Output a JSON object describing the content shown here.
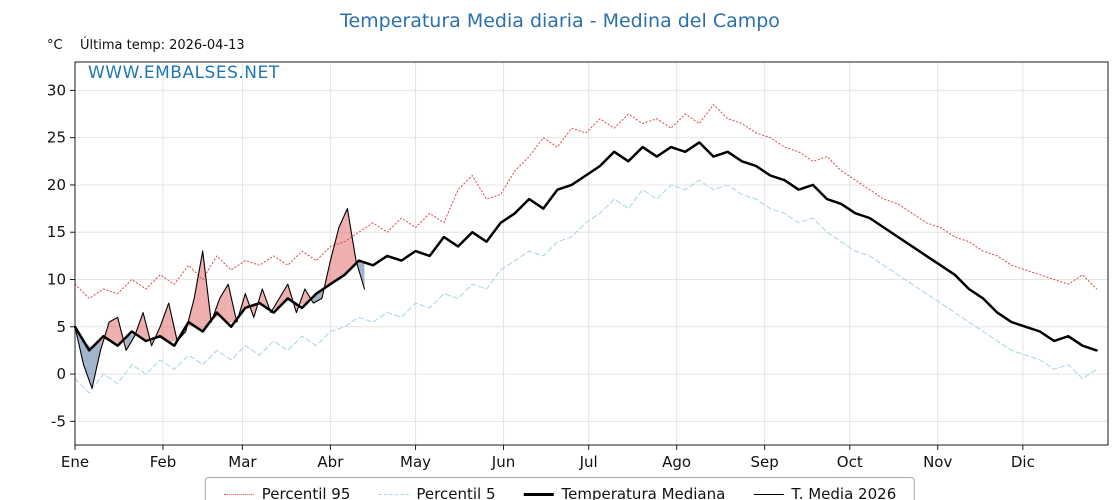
{
  "title": "Temperatura Media diaria - Medina del Campo",
  "unit_label": "°C",
  "last_temp_label": "Última temp: 2026-04-13",
  "watermark": "WWW.EMBALSES.NET",
  "colors": {
    "title": "#2c6fad",
    "watermark": "#1f77b4",
    "grid": "#e4e4e4",
    "axis": "#1a1a1a",
    "p95": "#dd4b4b",
    "p5": "#a6d4e6",
    "median": "#000000",
    "t2026": "#000000",
    "fill_above": "rgba(224,96,96,0.50)",
    "fill_below": "rgba(96,130,170,0.60)"
  },
  "chart_data": {
    "type": "line",
    "title": "Temperatura Media diaria - Medina del Campo",
    "xlabel": "",
    "ylabel": "°C",
    "x_unit": "day_of_year",
    "x_range": [
      0,
      364
    ],
    "ylim": [
      -7.5,
      33
    ],
    "yticks": [
      -5,
      0,
      5,
      10,
      15,
      20,
      25,
      30
    ],
    "grid": true,
    "legend_position": "bottom",
    "month_ticks": {
      "labels": [
        "Ene",
        "Feb",
        "Mar",
        "Abr",
        "May",
        "Jun",
        "Jul",
        "Ago",
        "Sep",
        "Oct",
        "Nov",
        "Dic"
      ],
      "day_positions": [
        0,
        31,
        59,
        90,
        120,
        151,
        181,
        212,
        243,
        273,
        304,
        334
      ]
    },
    "x_days": [
      0,
      5,
      10,
      15,
      20,
      25,
      30,
      35,
      40,
      45,
      50,
      55,
      60,
      65,
      70,
      75,
      80,
      85,
      90,
      95,
      100,
      105,
      110,
      115,
      120,
      125,
      130,
      135,
      140,
      145,
      150,
      155,
      160,
      165,
      170,
      175,
      180,
      185,
      190,
      195,
      200,
      205,
      210,
      215,
      220,
      225,
      230,
      235,
      240,
      245,
      250,
      255,
      260,
      265,
      270,
      275,
      280,
      285,
      290,
      295,
      300,
      305,
      310,
      315,
      320,
      325,
      330,
      335,
      340,
      345,
      350,
      355,
      360
    ],
    "series": [
      {
        "name": "Percentil 95",
        "style": "dotted",
        "color": "#dd4b4b",
        "width": 1,
        "values": [
          9.5,
          8.0,
          9.0,
          8.5,
          10.0,
          9.0,
          10.5,
          9.5,
          11.5,
          10.0,
          12.5,
          11.0,
          12.0,
          11.5,
          12.5,
          11.5,
          13.0,
          12.0,
          13.5,
          14.0,
          15.0,
          16.0,
          15.0,
          16.5,
          15.5,
          17.0,
          16.0,
          19.5,
          21.0,
          18.5,
          19.0,
          21.5,
          23.0,
          25.0,
          24.0,
          26.0,
          25.5,
          27.0,
          26.0,
          27.5,
          26.5,
          27.0,
          26.0,
          27.5,
          26.5,
          28.5,
          27.0,
          26.5,
          25.5,
          25.0,
          24.0,
          23.5,
          22.5,
          23.0,
          21.5,
          20.5,
          19.5,
          18.5,
          18.0,
          17.0,
          16.0,
          15.5,
          14.5,
          14.0,
          13.0,
          12.5,
          11.5,
          11.0,
          10.5,
          10.0,
          9.5,
          10.5,
          9.0
        ]
      },
      {
        "name": "Percentil 5",
        "style": "dashed",
        "color": "#a6d4e6",
        "width": 1,
        "values": [
          -0.5,
          -2.0,
          0.0,
          -1.0,
          1.0,
          0.0,
          1.5,
          0.5,
          2.0,
          1.0,
          2.5,
          1.5,
          3.0,
          2.0,
          3.5,
          2.5,
          4.0,
          3.0,
          4.5,
          5.0,
          6.0,
          5.5,
          6.5,
          6.0,
          7.5,
          7.0,
          8.5,
          8.0,
          9.5,
          9.0,
          11.0,
          12.0,
          13.0,
          12.5,
          14.0,
          14.5,
          16.0,
          17.0,
          18.5,
          17.5,
          19.5,
          18.5,
          20.0,
          19.5,
          20.5,
          19.5,
          20.0,
          19.0,
          18.5,
          17.5,
          17.0,
          16.0,
          16.5,
          15.0,
          14.0,
          13.0,
          12.5,
          11.5,
          10.5,
          9.5,
          8.5,
          7.5,
          6.5,
          5.5,
          4.5,
          3.5,
          2.5,
          2.0,
          1.5,
          0.5,
          1.0,
          -0.5,
          0.5
        ]
      },
      {
        "name": "Temperatura Mediana",
        "style": "solid",
        "color": "#000000",
        "width": 2.5,
        "values": [
          5.0,
          2.5,
          4.0,
          3.0,
          4.5,
          3.5,
          4.0,
          3.0,
          5.5,
          4.5,
          6.5,
          5.0,
          7.0,
          7.5,
          6.5,
          8.0,
          7.0,
          8.5,
          9.5,
          10.5,
          12.0,
          11.5,
          12.5,
          12.0,
          13.0,
          12.5,
          14.5,
          13.5,
          15.0,
          14.0,
          16.0,
          17.0,
          18.5,
          17.5,
          19.5,
          20.0,
          21.0,
          22.0,
          23.5,
          22.5,
          24.0,
          23.0,
          24.0,
          23.5,
          24.5,
          23.0,
          23.5,
          22.5,
          22.0,
          21.0,
          20.5,
          19.5,
          20.0,
          18.5,
          18.0,
          17.0,
          16.5,
          15.5,
          14.5,
          13.5,
          12.5,
          11.5,
          10.5,
          9.0,
          8.0,
          6.5,
          5.5,
          5.0,
          4.5,
          3.5,
          4.0,
          3.0,
          2.5
        ]
      },
      {
        "name": "T. Media 2026",
        "style": "solid",
        "color": "#000000",
        "width": 1.1,
        "x": [
          0,
          3,
          6,
          9,
          12,
          15,
          18,
          21,
          24,
          27,
          30,
          33,
          36,
          39,
          42,
          45,
          48,
          51,
          54,
          57,
          60,
          63,
          66,
          69,
          72,
          75,
          78,
          81,
          84,
          87,
          90,
          93,
          96,
          99,
          102
        ],
        "values": [
          5.0,
          1.0,
          -1.5,
          2.5,
          5.5,
          6.0,
          2.5,
          4.0,
          6.5,
          3.0,
          5.0,
          7.5,
          3.5,
          4.5,
          8.0,
          13.0,
          5.5,
          8.0,
          9.5,
          5.5,
          8.5,
          6.0,
          9.0,
          6.5,
          8.0,
          9.5,
          6.5,
          9.0,
          7.5,
          8.0,
          12.0,
          15.5,
          17.5,
          12.0,
          9.0
        ]
      }
    ],
    "fill_between": {
      "upper": "T. Media 2026",
      "lower": "Temperatura Mediana",
      "above_color": "rgba(224,96,96,0.50)",
      "below_color": "rgba(96,130,170,0.60)"
    }
  }
}
